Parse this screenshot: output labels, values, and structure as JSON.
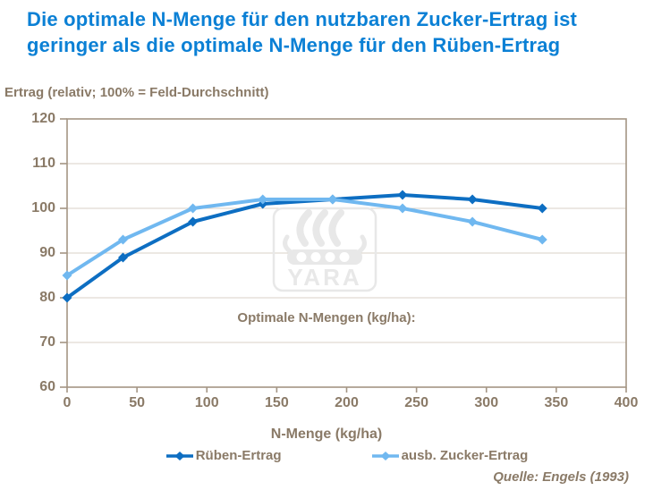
{
  "slide": {
    "title_line1": "Die optimale N-Menge für den nutzbaren Zucker-Ertrag ist",
    "title_line2": "geringer als die optimale N-Menge für den Rüben-Ertrag",
    "source": "Quelle: Engels (1993)",
    "watermark_text": "YARA"
  },
  "chart_data": {
    "type": "line",
    "xlabel": "N-Menge (kg/ha)",
    "ylabel": "Ertrag (relativ; 100% = Feld-Durchschnitt)",
    "annotation": "Optimale N-Mengen (kg/ha):",
    "x": [
      0,
      40,
      90,
      140,
      190,
      240,
      290,
      340
    ],
    "series": [
      {
        "name": "Rüben-Ertrag",
        "color": "#0d6ec2",
        "values": [
          80,
          89,
          97,
          101,
          102,
          103,
          102,
          100
        ]
      },
      {
        "name": "ausb. Zucker-Ertrag",
        "color": "#70b8f0",
        "values": [
          85,
          93,
          100,
          102,
          102,
          100,
          97,
          93
        ]
      }
    ],
    "xlim": [
      0,
      400
    ],
    "ylim": [
      60,
      120
    ],
    "x_ticks": [
      0,
      50,
      100,
      150,
      200,
      250,
      300,
      350,
      400
    ],
    "y_ticks": [
      120,
      110,
      100,
      90,
      80,
      70,
      60
    ],
    "grid": "horizontal-only",
    "legend_position": "bottom",
    "marker": "diamond"
  },
  "colors": {
    "title_text": "#0b80d5",
    "axis_text": "#8a7a67",
    "plot_border": "#a49584",
    "gridline": "#d8d1c7",
    "series_ruben": "#0d6ec2",
    "series_zucker": "#70b8f0",
    "watermark": "#e8e8e8"
  }
}
